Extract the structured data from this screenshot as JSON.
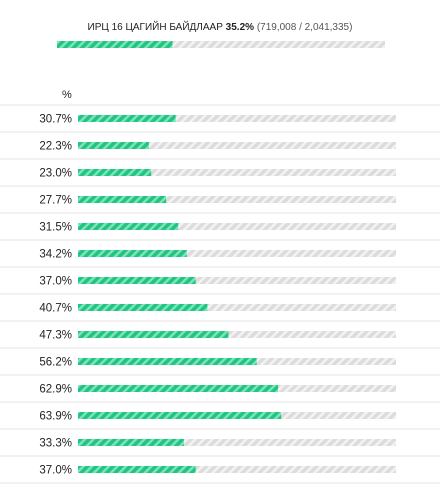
{
  "header": {
    "title": "ИРЦ 16 ЦАГИЙН БАЙДЛААР",
    "percent_label": "35.2%",
    "percent": 35.2,
    "counts": "(719,008 / 2,041,335)"
  },
  "xlim": [
    0,
    100
  ],
  "column_header": "%",
  "rows": [
    {
      "label": "30.7%",
      "value": 30.7
    },
    {
      "label": "22.3%",
      "value": 22.3
    },
    {
      "label": "23.0%",
      "value": 23.0
    },
    {
      "label": "27.7%",
      "value": 27.7
    },
    {
      "label": "31.5%",
      "value": 31.5
    },
    {
      "label": "34.2%",
      "value": 34.2
    },
    {
      "label": "37.0%",
      "value": 37.0
    },
    {
      "label": "40.7%",
      "value": 40.7
    },
    {
      "label": "47.3%",
      "value": 47.3
    },
    {
      "label": "56.2%",
      "value": 56.2
    },
    {
      "label": "62.9%",
      "value": 62.9
    },
    {
      "label": "63.9%",
      "value": 63.9
    },
    {
      "label": "33.3%",
      "value": 33.3
    },
    {
      "label": "37.0%",
      "value": 37.0
    }
  ]
}
